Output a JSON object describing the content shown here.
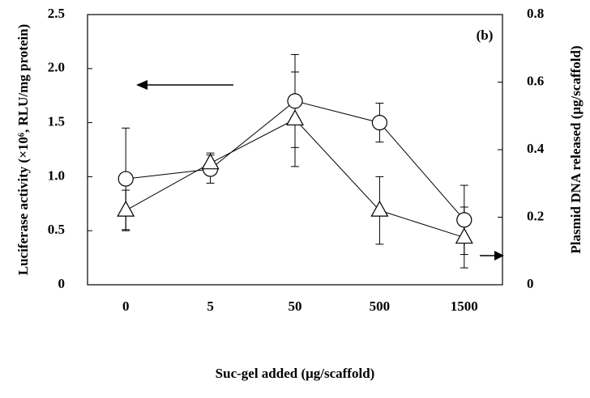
{
  "chart_data": {
    "type": "line",
    "annotation": "(b)",
    "xlabel": "Suc-gel added (μg/scaffold)",
    "ylabel": "Luciferase activity (×10⁶, RLU/mg protein)",
    "y2label": "Plasmid DNA released (μg/scaffold)",
    "categories": [
      "0",
      "5",
      "50",
      "500",
      "1500"
    ],
    "ylim": [
      0,
      2.5
    ],
    "yticks": [
      0,
      {
        "value": 0.5,
        "label": "0.5"
      },
      {
        "value": 1,
        "label": "1.0"
      },
      {
        "value": 1.5,
        "label": "1.5"
      },
      {
        "value": 2,
        "label": "2.0"
      },
      {
        "value": 2.5,
        "label": "2.5"
      }
    ],
    "y2lim": [
      0,
      0.8
    ],
    "y2ticks": [
      0,
      0.2,
      0.4,
      0.6,
      0.8
    ],
    "series": [
      {
        "marker": "circle",
        "color": "#000000",
        "values": [
          0.98,
          1.07,
          1.7,
          1.5,
          0.6
        ],
        "errors": [
          0.47,
          0.13,
          0.43,
          0.18,
          0.32
        ]
      },
      {
        "marker": "triangle",
        "color": "#000000",
        "axis": "y2",
        "values": [
          0.22,
          0.36,
          0.49,
          0.22,
          0.14
        ],
        "errors": [
          0.06,
          0.03,
          0.14,
          0.1,
          0.09
        ]
      }
    ]
  }
}
